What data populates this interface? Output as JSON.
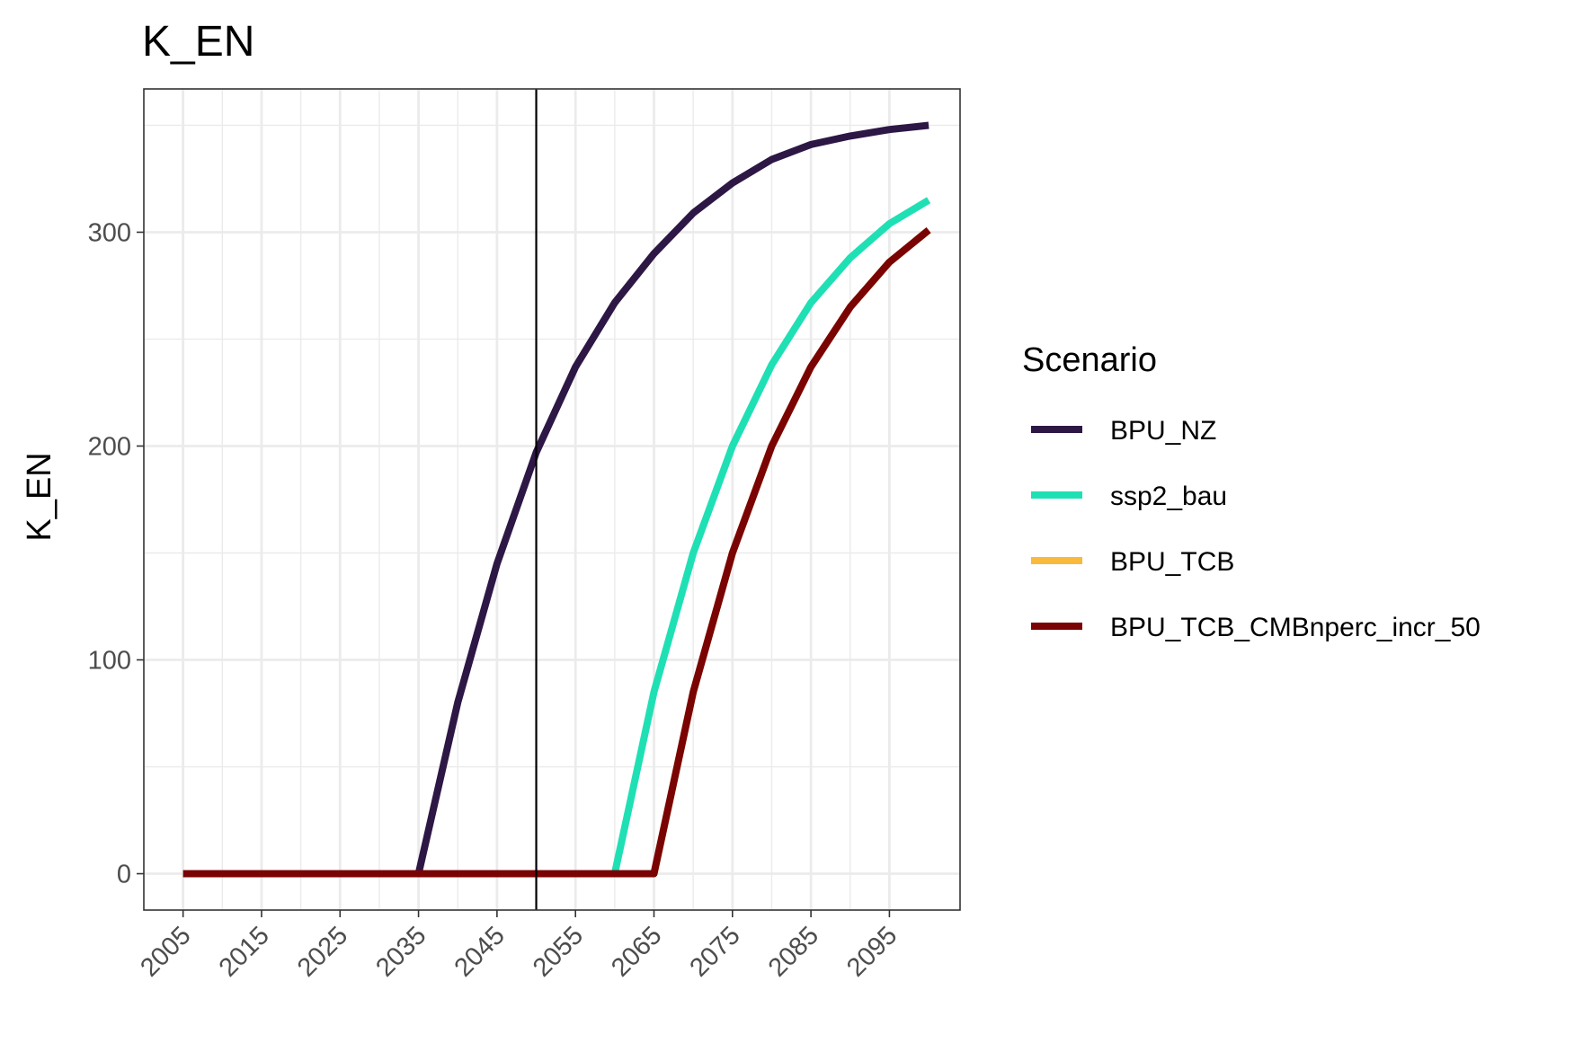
{
  "chart_data": {
    "type": "line",
    "title": "K_EN",
    "xlabel": "",
    "ylabel": "K_EN",
    "xlim": [
      2000,
      2104
    ],
    "ylim": [
      -17,
      367
    ],
    "x_ticks": [
      2005,
      2015,
      2025,
      2035,
      2045,
      2055,
      2065,
      2075,
      2085,
      2095
    ],
    "y_ticks": [
      0,
      100,
      200,
      300
    ],
    "vline": 2050,
    "grid": true,
    "legend_title": "Scenario",
    "legend_position": "right",
    "x": [
      2005,
      2010,
      2015,
      2020,
      2025,
      2030,
      2035,
      2040,
      2045,
      2050,
      2055,
      2060,
      2065,
      2070,
      2075,
      2080,
      2085,
      2090,
      2095,
      2100
    ],
    "series": [
      {
        "name": "BPU_NZ",
        "color": "#2d1745",
        "values": [
          0,
          0,
          0,
          0,
          0,
          0,
          0,
          80,
          145,
          197,
          237,
          267,
          290,
          309,
          323,
          334,
          341,
          345,
          348,
          350
        ]
      },
      {
        "name": "ssp2_bau",
        "color": "#1fe0b4",
        "values": [
          0,
          0,
          0,
          0,
          0,
          0,
          0,
          0,
          0,
          0,
          0,
          0,
          85,
          150,
          200,
          238,
          267,
          288,
          304,
          315
        ]
      },
      {
        "name": "BPU_TCB",
        "color": "#f9b93a",
        "values": [
          0,
          0,
          0,
          0,
          0,
          0,
          0,
          0,
          0,
          0,
          0,
          0,
          0,
          85,
          150,
          200,
          237,
          265,
          286,
          301
        ]
      },
      {
        "name": "BPU_TCB_CMBnperc_incr_50",
        "color": "#7a0403",
        "values": [
          0,
          0,
          0,
          0,
          0,
          0,
          0,
          0,
          0,
          0,
          0,
          0,
          0,
          85,
          150,
          200,
          237,
          265,
          286,
          301
        ]
      }
    ]
  }
}
